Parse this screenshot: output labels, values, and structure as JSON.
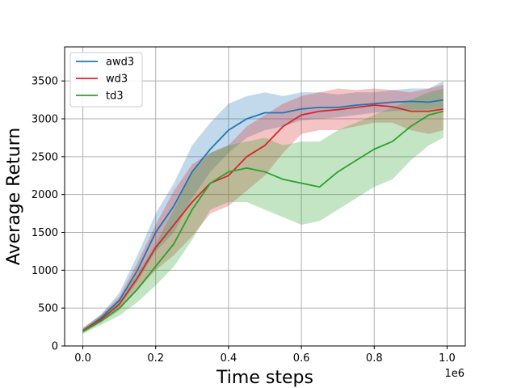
{
  "chart_data": {
    "type": "line",
    "title": "",
    "xlabel": "Time steps",
    "ylabel": "Average Return",
    "x_offset_label": "1e6",
    "xlim": [
      -0.05,
      1.05
    ],
    "ylim": [
      0,
      3950
    ],
    "xticks": [
      0.0,
      0.2,
      0.4,
      0.6,
      0.8,
      1.0
    ],
    "xtick_labels": [
      "0.0",
      "0.2",
      "0.4",
      "0.6",
      "0.8",
      "1.0"
    ],
    "yticks": [
      0,
      500,
      1000,
      1500,
      2000,
      2500,
      3000,
      3500
    ],
    "ytick_labels": [
      "0",
      "500",
      "1000",
      "1500",
      "2000",
      "2500",
      "3000",
      "3500"
    ],
    "grid": true,
    "legend_position": "upper-left",
    "x": [
      0.0,
      0.05,
      0.1,
      0.15,
      0.2,
      0.25,
      0.3,
      0.35,
      0.4,
      0.45,
      0.5,
      0.55,
      0.6,
      0.65,
      0.7,
      0.75,
      0.8,
      0.85,
      0.9,
      0.95,
      0.99
    ],
    "series": [
      {
        "name": "awd3",
        "color": "#1f77b4",
        "values": [
          200,
          370,
          600,
          1000,
          1500,
          1850,
          2300,
          2600,
          2850,
          3000,
          3080,
          3080,
          3130,
          3150,
          3150,
          3180,
          3200,
          3220,
          3230,
          3220,
          3250
        ],
        "lower": [
          180,
          330,
          520,
          850,
          1250,
          1500,
          1950,
          2300,
          2550,
          2750,
          2850,
          2900,
          2980,
          3000,
          3020,
          3050,
          3080,
          3100,
          3120,
          3120,
          3150
        ],
        "upper": [
          230,
          420,
          700,
          1200,
          1750,
          2150,
          2650,
          2950,
          3200,
          3300,
          3350,
          3300,
          3350,
          3350,
          3320,
          3350,
          3350,
          3380,
          3400,
          3400,
          3500
        ]
      },
      {
        "name": "wd3",
        "color": "#d62728",
        "values": [
          200,
          350,
          550,
          900,
          1300,
          1600,
          1900,
          2150,
          2250,
          2500,
          2650,
          2900,
          3050,
          3100,
          3120,
          3150,
          3180,
          3160,
          3100,
          3100,
          3130
        ],
        "lower": [
          170,
          310,
          470,
          740,
          1000,
          1200,
          1450,
          1750,
          1850,
          2050,
          2250,
          2550,
          2800,
          2850,
          2850,
          2900,
          2950,
          2950,
          2850,
          2800,
          2850
        ],
        "upper": [
          240,
          410,
          650,
          1100,
          1600,
          2050,
          2400,
          2550,
          2650,
          2900,
          3050,
          3200,
          3300,
          3350,
          3400,
          3380,
          3400,
          3380,
          3350,
          3400,
          3450
        ]
      },
      {
        "name": "td3",
        "color": "#2ca02c",
        "values": [
          190,
          330,
          500,
          750,
          1050,
          1350,
          1800,
          2150,
          2300,
          2350,
          2300,
          2200,
          2150,
          2100,
          2300,
          2450,
          2600,
          2700,
          2900,
          3050,
          3100
        ],
        "lower": [
          160,
          280,
          400,
          580,
          800,
          1050,
          1400,
          1800,
          1900,
          1900,
          1800,
          1700,
          1600,
          1650,
          1800,
          1950,
          2100,
          2200,
          2450,
          2650,
          2750
        ],
        "upper": [
          230,
          400,
          620,
          950,
          1350,
          1800,
          2300,
          2550,
          2650,
          2700,
          2750,
          2650,
          2700,
          2700,
          2850,
          2950,
          3050,
          3150,
          3250,
          3350,
          3400
        ]
      }
    ]
  }
}
